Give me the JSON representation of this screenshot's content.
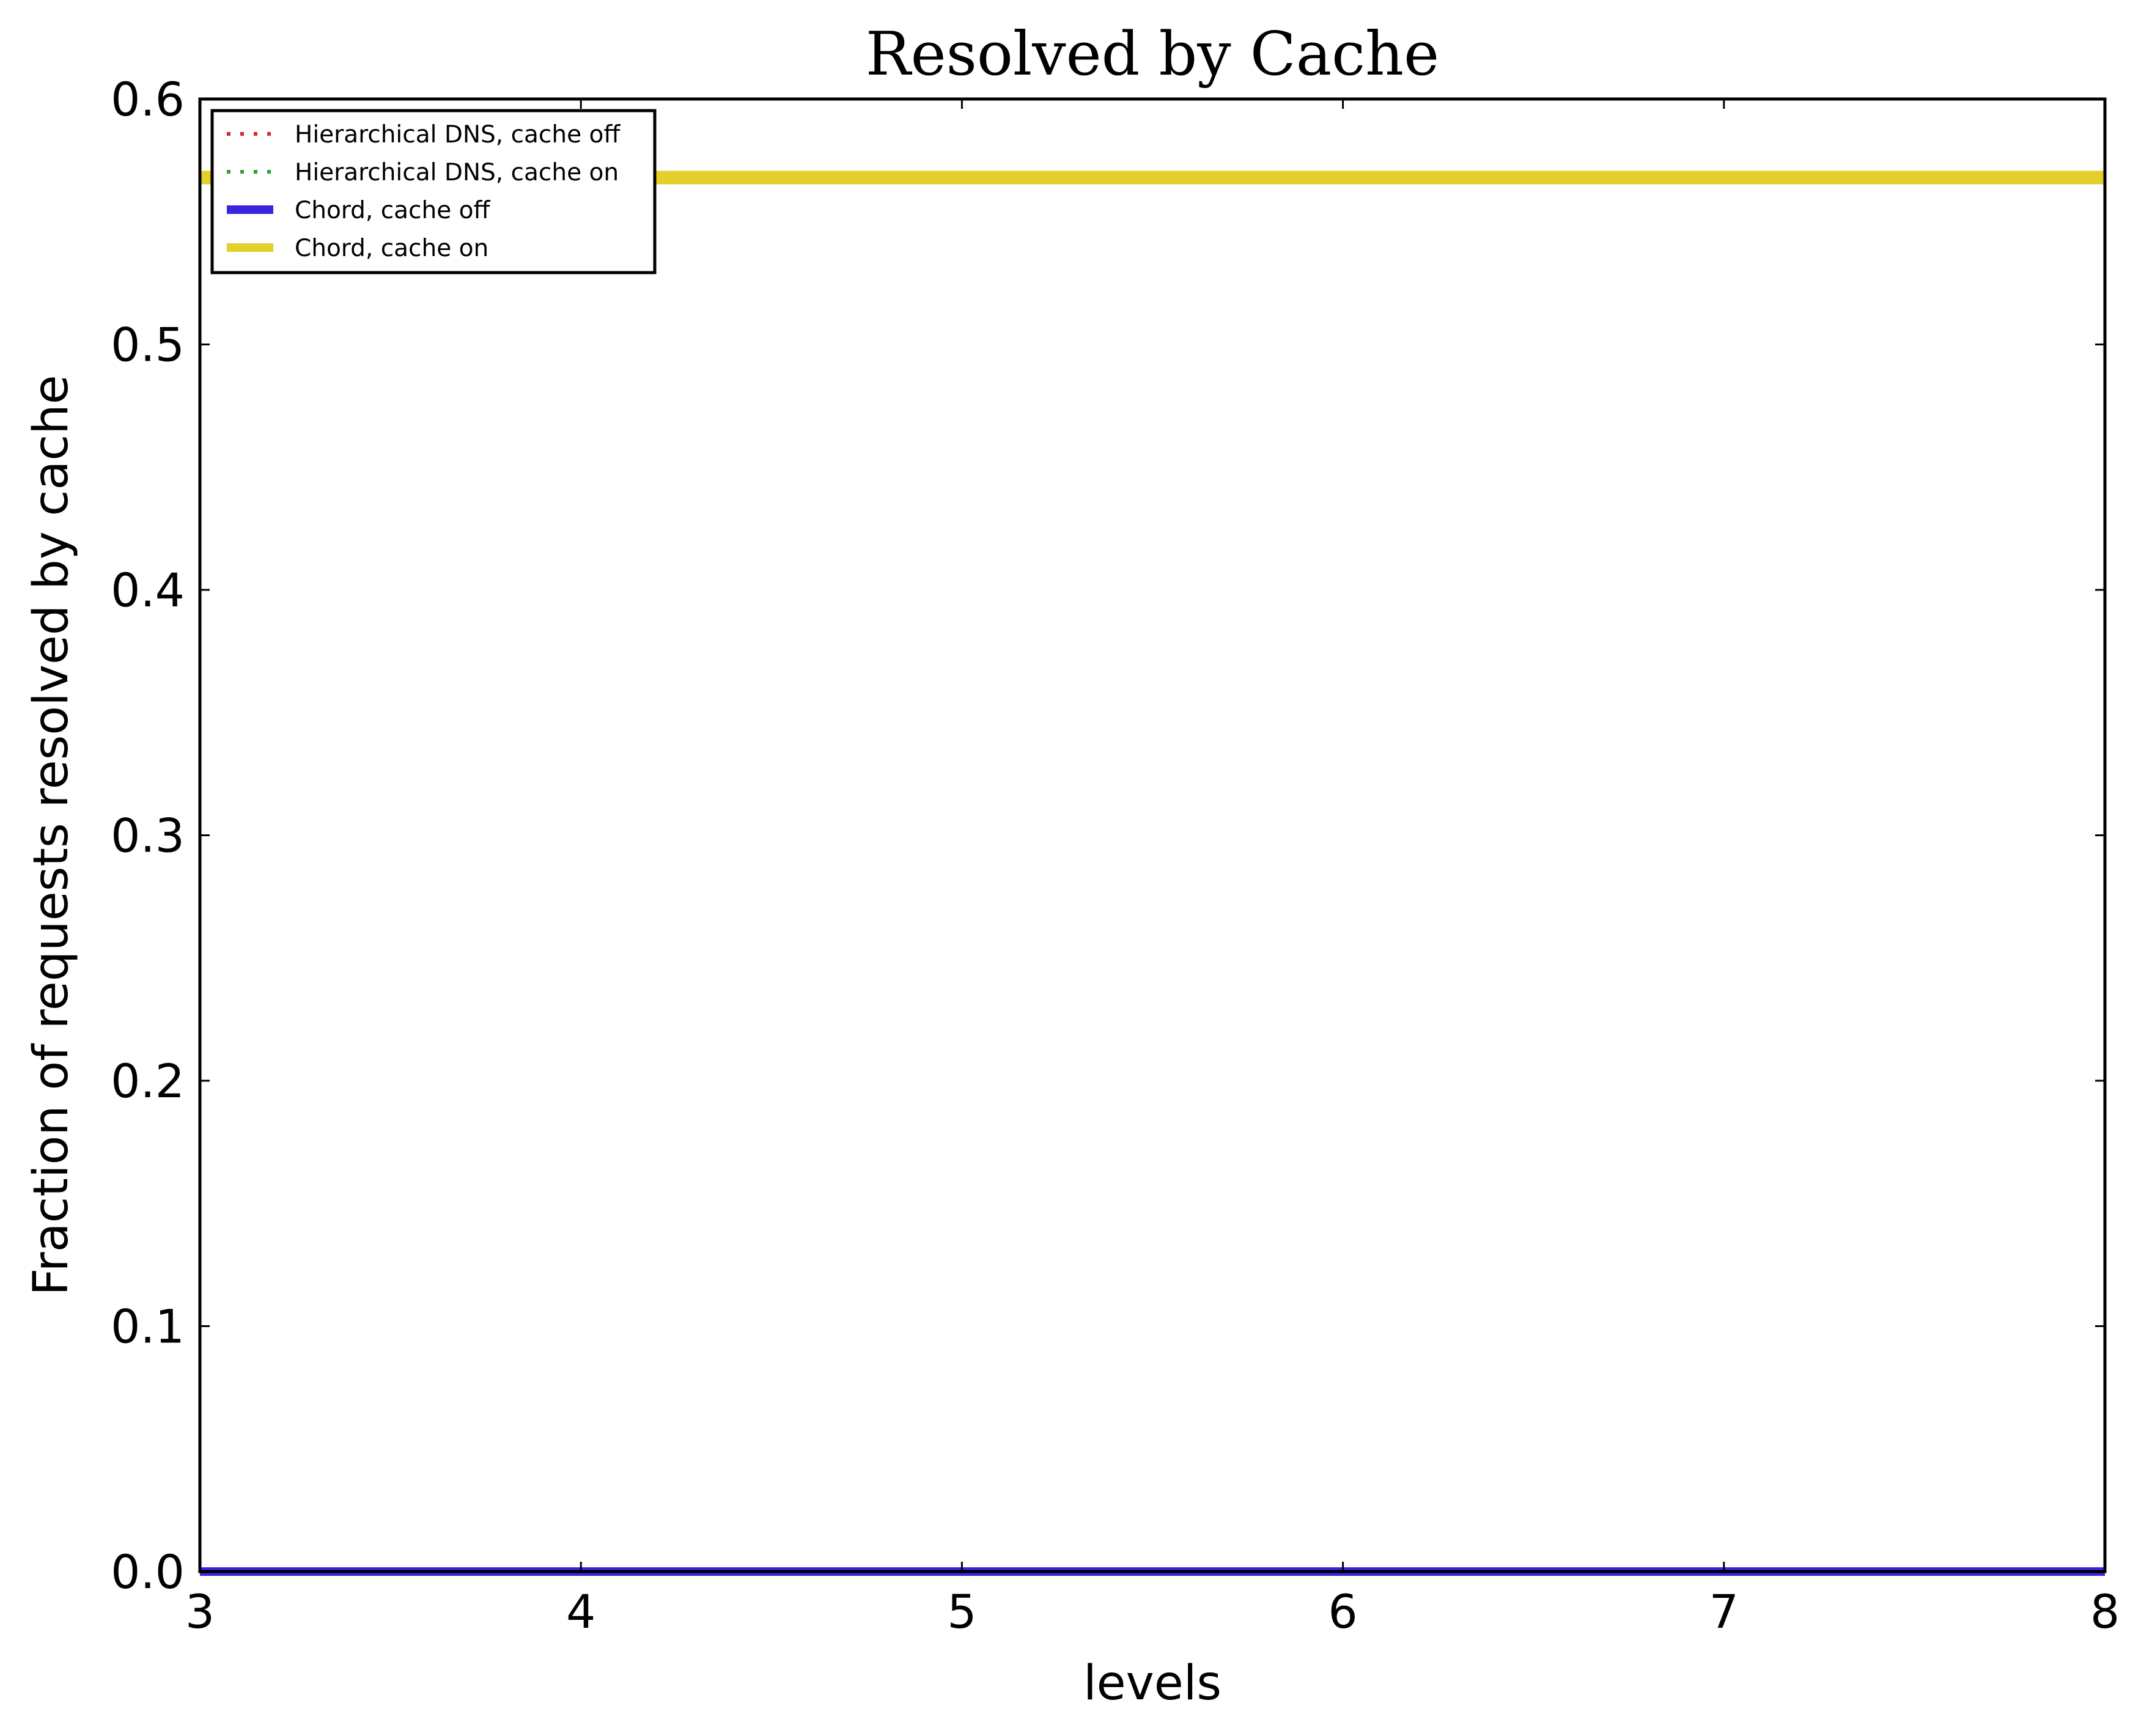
{
  "chart_data": {
    "type": "line",
    "title": "Resolved by Cache",
    "xlabel": "levels",
    "ylabel": "Fraction of requests resolved by cache",
    "xlim": [
      3,
      8
    ],
    "ylim": [
      0.0,
      0.6
    ],
    "x_ticks": [
      "3",
      "4",
      "5",
      "6",
      "7",
      "8"
    ],
    "y_ticks": [
      "0.0",
      "0.1",
      "0.2",
      "0.3",
      "0.4",
      "0.5",
      "0.6"
    ],
    "grid": false,
    "legend_position": "top-left",
    "x": [
      3,
      4,
      5,
      6,
      7,
      8
    ],
    "series": [
      {
        "name": "Hierarchical DNS, cache off",
        "values": [
          0,
          0,
          0,
          0,
          0,
          0
        ],
        "color": "#d62728",
        "style": "dashed"
      },
      {
        "name": "Hierarchical DNS, cache on",
        "values": [
          0,
          0,
          0,
          0,
          0,
          0
        ],
        "color": "#2ca02c",
        "style": "dashed"
      },
      {
        "name": "Chord, cache off",
        "values": [
          0,
          0,
          0,
          0,
          0,
          0
        ],
        "color": "#3a24e0",
        "style": "solid"
      },
      {
        "name": "Chord, cache on",
        "values": [
          0.568,
          0.568,
          0.568,
          0.568,
          0.568,
          0.568
        ],
        "color": "#e2cf2a",
        "style": "solid"
      }
    ]
  }
}
